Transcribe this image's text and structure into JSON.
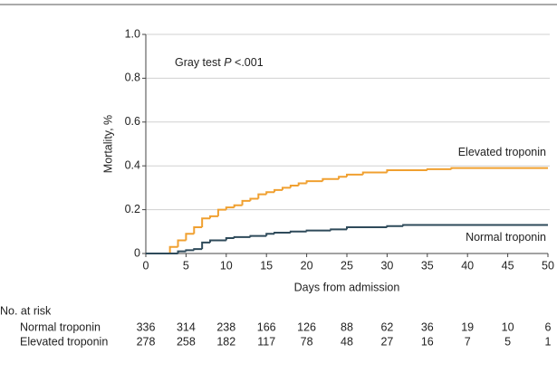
{
  "chart_data": {
    "type": "step",
    "annotation": {
      "prefix": "Gray test",
      "italic": "P",
      "suffix": "<.001"
    },
    "x_label": "Days from admission",
    "y_label": "Mortality, %",
    "xlim": [
      0,
      50
    ],
    "xticks": [
      0,
      5,
      10,
      15,
      20,
      25,
      30,
      35,
      40,
      45,
      50
    ],
    "ylim": [
      0,
      1
    ],
    "yticks": [
      0,
      0.2,
      0.4,
      0.6,
      0.8,
      {
        "value": 1,
        "label": "1.0"
      }
    ],
    "grid": true,
    "series": [
      {
        "name": "Elevated troponin",
        "color": "#f0a030",
        "x": [
          0,
          3,
          4,
          5,
          6,
          7,
          8,
          9,
          10,
          11,
          12,
          13,
          14,
          15,
          16,
          17,
          18,
          19,
          20,
          22,
          24,
          25,
          27,
          30,
          35,
          38
        ],
        "values": [
          0,
          0.03,
          0.06,
          0.09,
          0.12,
          0.16,
          0.17,
          0.2,
          0.21,
          0.22,
          0.24,
          0.25,
          0.27,
          0.28,
          0.29,
          0.3,
          0.31,
          0.32,
          0.33,
          0.34,
          0.35,
          0.36,
          0.37,
          0.38,
          0.385,
          0.39
        ]
      },
      {
        "name": "Normal troponin",
        "color": "#2e4a5a",
        "x": [
          0,
          4,
          5,
          6,
          7,
          8,
          10,
          11,
          13,
          15,
          16,
          18,
          20,
          23,
          25,
          30,
          32
        ],
        "values": [
          0,
          0.01,
          0.015,
          0.02,
          0.05,
          0.06,
          0.07,
          0.075,
          0.08,
          0.09,
          0.095,
          0.1,
          0.105,
          0.11,
          0.12,
          0.125,
          0.13
        ]
      }
    ],
    "risk_table": {
      "title": "No. at risk",
      "days": [
        0,
        5,
        10,
        15,
        20,
        25,
        30,
        35,
        40,
        45,
        50
      ],
      "rows": [
        {
          "label": "Normal troponin",
          "values": [
            336,
            314,
            238,
            166,
            126,
            88,
            62,
            36,
            19,
            10,
            6
          ]
        },
        {
          "label": "Elevated troponin",
          "values": [
            278,
            258,
            182,
            117,
            78,
            48,
            27,
            16,
            7,
            5,
            1
          ]
        }
      ]
    }
  }
}
